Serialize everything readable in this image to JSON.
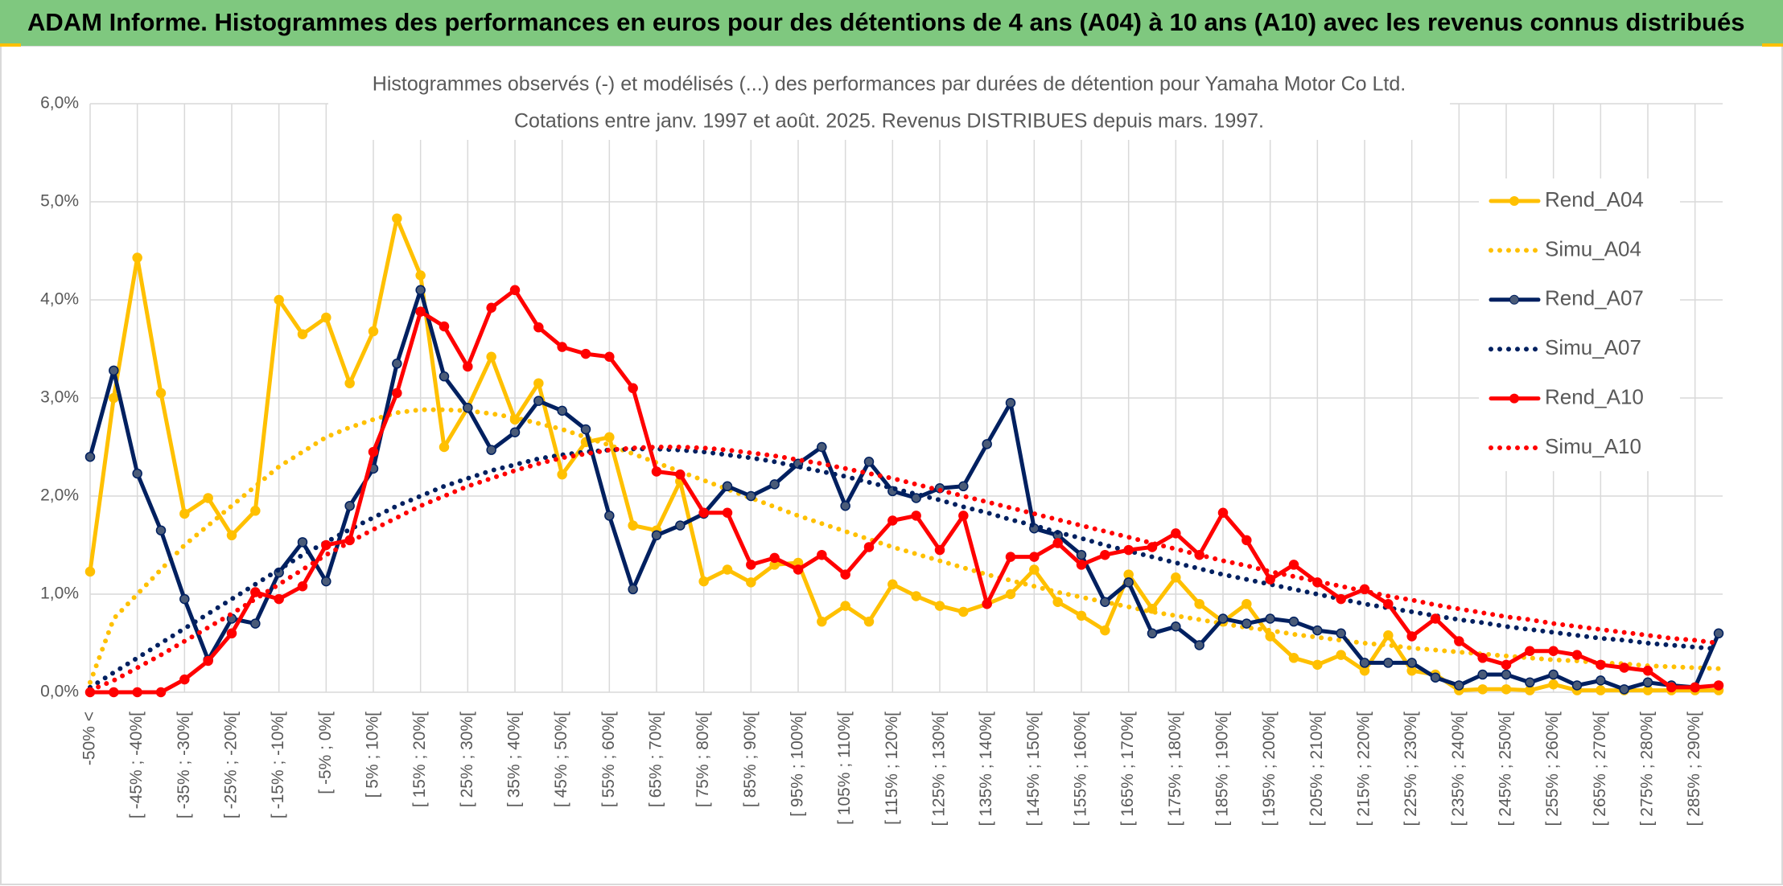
{
  "header": "ADAM Informe. Histogrammes des performances en euros pour des détentions de 4 ans (A04) à 10 ans (A10) avec les revenus connus distribués",
  "chart_data": {
    "type": "line",
    "title": "Histogrammes observés (-) et modélisés (...) des performances par durées de détention pour Yamaha Motor Co Ltd.",
    "subtitle": "Cotations entre janv. 1997 et août. 2025. Revenus DISTRIBUES depuis mars. 1997.",
    "categories": [
      "-50% <",
      null,
      "[ -45% ; -40%[",
      null,
      "[ -35% ; -30%[",
      null,
      "[ -25% ; -20%[",
      null,
      "[ -15% ; -10%[",
      null,
      "[ -5% ; 0%[",
      null,
      "[ 5% ; 10%[",
      null,
      "[ 15% ; 20%[",
      null,
      "[ 25% ; 30%[",
      null,
      "[ 35% ; 40%[",
      null,
      "[ 45% ; 50%[",
      null,
      "[ 55% ; 60%[",
      null,
      "[ 65% ; 70%[",
      null,
      "[ 75% ; 80%[",
      null,
      "[ 85% ; 90%[",
      null,
      "[ 95% ; 100%[",
      null,
      "[ 105% ; 110%[",
      null,
      "[ 115% ; 120%[",
      null,
      "[ 125% ; 130%[",
      null,
      "[ 135% ; 140%[",
      null,
      "[ 145% ; 150%[",
      null,
      "[ 155% ; 160%[",
      null,
      "[ 165% ; 170%[",
      null,
      "[ 175% ; 180%[",
      null,
      "[ 185% ; 190%[",
      null,
      "[ 195% ; 200%[",
      null,
      "[ 205% ; 210%[",
      null,
      "[ 215% ; 220%[",
      null,
      "[ 225% ; 230%[",
      null,
      "[ 235% ; 240%[",
      null,
      "[ 245% ; 250%[",
      null,
      "[ 255% ; 260%[",
      null,
      "[ 265% ; 270%[",
      null,
      "[ 275% ; 280%[",
      null,
      "[ 285% ; 290%[",
      null
    ],
    "ylim": [
      0,
      6
    ],
    "yticks": [
      {
        "value": 0,
        "label": "0,0%"
      },
      {
        "value": 1,
        "label": "1,0%"
      },
      {
        "value": 2,
        "label": "2,0%"
      },
      {
        "value": 3,
        "label": "3,0%"
      },
      {
        "value": 4,
        "label": "4,0%"
      },
      {
        "value": 5,
        "label": "5,0%"
      },
      {
        "value": 6,
        "label": "6,0%"
      }
    ],
    "grid": true,
    "legend": "right",
    "series": [
      {
        "name": "Rend_A04",
        "color": "#ffc000",
        "style": "solid",
        "values": [
          1.23,
          3.0,
          4.43,
          3.05,
          1.82,
          1.98,
          1.6,
          1.85,
          4.0,
          3.65,
          3.82,
          3.15,
          3.68,
          4.83,
          4.25,
          2.5,
          2.9,
          3.42,
          2.78,
          3.15,
          2.22,
          2.55,
          2.6,
          1.7,
          1.65,
          2.15,
          1.13,
          1.25,
          1.12,
          1.3,
          1.32,
          0.72,
          0.88,
          0.72,
          1.1,
          0.98,
          0.88,
          0.82,
          0.9,
          1.0,
          1.25,
          0.92,
          0.78,
          0.63,
          1.2,
          0.85,
          1.17,
          0.9,
          0.72,
          0.9,
          0.57,
          0.35,
          0.28,
          0.38,
          0.22,
          0.58,
          0.22,
          0.18,
          0.02,
          0.03,
          0.03,
          0.02,
          0.08,
          0.02,
          0.02,
          0.02,
          0.02,
          0.02,
          0.02,
          0.02
        ]
      },
      {
        "name": "Simu_A04",
        "color": "#ffc000",
        "style": "dotted",
        "values": [
          0.1,
          0.75,
          1.0,
          1.25,
          1.5,
          1.7,
          1.9,
          2.1,
          2.3,
          2.45,
          2.6,
          2.7,
          2.78,
          2.85,
          2.88,
          2.88,
          2.87,
          2.84,
          2.8,
          2.74,
          2.68,
          2.6,
          2.52,
          2.43,
          2.34,
          2.25,
          2.16,
          2.07,
          1.98,
          1.89,
          1.8,
          1.72,
          1.64,
          1.56,
          1.48,
          1.41,
          1.34,
          1.27,
          1.2,
          1.14,
          1.08,
          1.02,
          0.97,
          0.92,
          0.87,
          0.82,
          0.78,
          0.74,
          0.7,
          0.66,
          0.63,
          0.59,
          0.56,
          0.53,
          0.5,
          0.48,
          0.45,
          0.43,
          0.41,
          0.39,
          0.37,
          0.35,
          0.33,
          0.32,
          0.3,
          0.29,
          0.27,
          0.26,
          0.25,
          0.24
        ]
      },
      {
        "name": "Rend_A07",
        "color": "#002060",
        "style": "solid",
        "values": [
          2.4,
          3.28,
          2.23,
          1.65,
          0.95,
          0.33,
          0.75,
          0.7,
          1.22,
          1.53,
          1.13,
          1.9,
          2.28,
          3.35,
          4.1,
          3.22,
          2.9,
          2.47,
          2.65,
          2.97,
          2.87,
          2.68,
          1.8,
          1.05,
          1.6,
          1.7,
          1.82,
          2.1,
          2.0,
          2.12,
          2.33,
          2.5,
          1.9,
          2.35,
          2.05,
          1.98,
          2.08,
          2.1,
          2.53,
          2.95,
          1.67,
          1.6,
          1.4,
          0.92,
          1.12,
          0.6,
          0.67,
          0.48,
          0.75,
          0.7,
          0.75,
          0.72,
          0.63,
          0.6,
          0.3,
          0.3,
          0.3,
          0.15,
          0.07,
          0.18,
          0.18,
          0.1,
          0.18,
          0.07,
          0.12,
          0.03,
          0.1,
          0.07,
          0.05,
          0.6
        ]
      },
      {
        "name": "Simu_A07",
        "color": "#002060",
        "style": "dotted",
        "values": [
          0.05,
          0.2,
          0.35,
          0.5,
          0.65,
          0.8,
          0.95,
          1.1,
          1.25,
          1.4,
          1.53,
          1.66,
          1.78,
          1.9,
          2.0,
          2.1,
          2.18,
          2.26,
          2.32,
          2.38,
          2.42,
          2.45,
          2.47,
          2.48,
          2.48,
          2.47,
          2.45,
          2.42,
          2.39,
          2.35,
          2.3,
          2.25,
          2.2,
          2.14,
          2.08,
          2.02,
          1.96,
          1.89,
          1.83,
          1.76,
          1.7,
          1.63,
          1.57,
          1.5,
          1.44,
          1.38,
          1.32,
          1.26,
          1.2,
          1.15,
          1.1,
          1.05,
          1.0,
          0.95,
          0.9,
          0.86,
          0.82,
          0.78,
          0.74,
          0.71,
          0.67,
          0.64,
          0.61,
          0.58,
          0.55,
          0.53,
          0.5,
          0.48,
          0.46,
          0.44
        ]
      },
      {
        "name": "Rend_A10",
        "color": "#ff0000",
        "style": "solid",
        "values": [
          0.0,
          0.0,
          0.0,
          0.0,
          0.13,
          0.32,
          0.6,
          1.02,
          0.95,
          1.08,
          1.5,
          1.55,
          2.45,
          3.05,
          3.88,
          3.73,
          3.32,
          3.92,
          4.1,
          3.72,
          3.52,
          3.45,
          3.42,
          3.1,
          2.25,
          2.22,
          1.83,
          1.83,
          1.3,
          1.37,
          1.25,
          1.4,
          1.2,
          1.48,
          1.75,
          1.8,
          1.45,
          1.8,
          0.9,
          1.38,
          1.38,
          1.52,
          1.3,
          1.4,
          1.45,
          1.48,
          1.62,
          1.4,
          1.83,
          1.55,
          1.15,
          1.3,
          1.12,
          0.95,
          1.05,
          0.9,
          0.57,
          0.75,
          0.52,
          0.35,
          0.28,
          0.42,
          0.42,
          0.38,
          0.28,
          0.25,
          0.22,
          0.05,
          0.05,
          0.07
        ]
      },
      {
        "name": "Simu_A10",
        "color": "#ff0000",
        "style": "dotted",
        "values": [
          0.02,
          0.12,
          0.25,
          0.38,
          0.52,
          0.66,
          0.8,
          0.95,
          1.1,
          1.25,
          1.4,
          1.53,
          1.66,
          1.78,
          1.9,
          2.0,
          2.1,
          2.18,
          2.26,
          2.33,
          2.39,
          2.43,
          2.47,
          2.49,
          2.5,
          2.5,
          2.49,
          2.47,
          2.44,
          2.41,
          2.37,
          2.33,
          2.28,
          2.23,
          2.18,
          2.12,
          2.06,
          2.0,
          1.94,
          1.88,
          1.82,
          1.76,
          1.7,
          1.64,
          1.58,
          1.52,
          1.46,
          1.4,
          1.34,
          1.29,
          1.23,
          1.18,
          1.13,
          1.08,
          1.03,
          0.98,
          0.94,
          0.89,
          0.85,
          0.81,
          0.77,
          0.74,
          0.7,
          0.67,
          0.64,
          0.61,
          0.58,
          0.55,
          0.53,
          0.5
        ]
      }
    ]
  }
}
